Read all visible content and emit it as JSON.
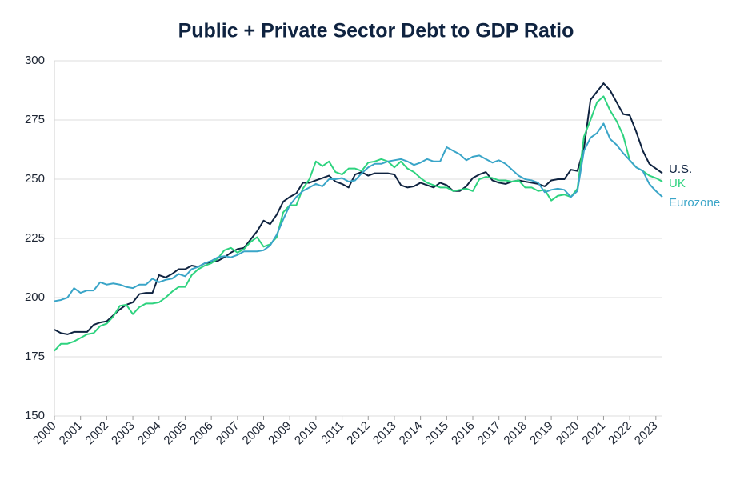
{
  "chart_data": {
    "type": "line",
    "title": "Public + Private Sector Debt to GDP Ratio",
    "x": [
      2000,
      2000.25,
      2000.5,
      2000.75,
      2001,
      2001.25,
      2001.5,
      2001.75,
      2002,
      2002.25,
      2002.5,
      2002.75,
      2003,
      2003.25,
      2003.5,
      2003.75,
      2004,
      2004.25,
      2004.5,
      2004.75,
      2005,
      2005.25,
      2005.5,
      2005.75,
      2006,
      2006.25,
      2006.5,
      2006.75,
      2007,
      2007.25,
      2007.5,
      2007.75,
      2008,
      2008.25,
      2008.5,
      2008.75,
      2009,
      2009.25,
      2009.5,
      2009.75,
      2010,
      2010.25,
      2010.5,
      2010.75,
      2011,
      2011.25,
      2011.5,
      2011.75,
      2012,
      2012.25,
      2012.5,
      2012.75,
      2013,
      2013.25,
      2013.5,
      2013.75,
      2014,
      2014.25,
      2014.5,
      2014.75,
      2015,
      2015.25,
      2015.5,
      2015.75,
      2016,
      2016.25,
      2016.5,
      2016.75,
      2017,
      2017.25,
      2017.5,
      2017.75,
      2018,
      2018.25,
      2018.5,
      2018.75,
      2019,
      2019.25,
      2019.5,
      2019.75,
      2020,
      2020.25,
      2020.5,
      2020.75,
      2021,
      2021.25,
      2021.5,
      2021.75,
      2022,
      2022.25,
      2022.5,
      2022.75,
      2023,
      2023.25
    ],
    "series": [
      {
        "name": "U.S.",
        "color": "#0f2340",
        "values": [
          186.5,
          185,
          184.5,
          185.5,
          185.5,
          185.5,
          188.5,
          189.5,
          190,
          192.5,
          195,
          197,
          198,
          201.5,
          202,
          202,
          209.5,
          208.5,
          210,
          212,
          212,
          213.5,
          213,
          214.5,
          215,
          215.5,
          217,
          219,
          220.5,
          221,
          224.5,
          228,
          232.5,
          231,
          235,
          240.5,
          242.5,
          244,
          248.5,
          248.5,
          249.5,
          250.5,
          251.5,
          249,
          248,
          246.5,
          252,
          253,
          251.5,
          252.5,
          252.5,
          252.5,
          252,
          247.5,
          246.5,
          247,
          248.5,
          247.5,
          246.5,
          248.5,
          247.5,
          245,
          245,
          247,
          250.5,
          252,
          253,
          249.5,
          248.5,
          248,
          249,
          249.5,
          249,
          248.5,
          248,
          247,
          249.5,
          250,
          250,
          254,
          253.5,
          263,
          283.5,
          287,
          290.5,
          287.5,
          282.5,
          277.5,
          277,
          270,
          262,
          256.5,
          254.5,
          252.5
        ]
      },
      {
        "name": "UK",
        "color": "#2ed37f",
        "values": [
          177.5,
          180.5,
          180.5,
          181.5,
          183,
          184.5,
          185,
          188,
          189,
          192,
          196.5,
          197,
          193,
          196,
          197.5,
          197.5,
          198,
          200,
          202.5,
          204.5,
          204.5,
          209.5,
          212,
          213.5,
          214.5,
          216.5,
          220,
          221,
          219,
          220.5,
          223.5,
          225.5,
          221.5,
          222.5,
          225.5,
          236,
          239,
          239,
          246,
          250,
          257.5,
          255.5,
          257.5,
          253,
          252,
          254.5,
          254.5,
          253.5,
          257,
          257.5,
          258.5,
          257.5,
          255,
          257.5,
          254.5,
          253,
          250.5,
          248.5,
          247.5,
          246.5,
          246.5,
          245,
          245.5,
          246,
          245,
          250,
          251,
          250.5,
          249.5,
          249.5,
          249,
          249.5,
          246.5,
          246.5,
          245,
          245.5,
          241,
          243,
          243.5,
          242.5,
          246,
          268,
          275,
          282.5,
          285,
          279,
          274.5,
          268.5,
          258,
          255,
          253.5,
          251.5,
          250.5,
          249
        ]
      },
      {
        "name": "Eurozone",
        "color": "#3aa5c8",
        "values": [
          198.5,
          199,
          200,
          204,
          202,
          203,
          203,
          206.5,
          205.5,
          206,
          205.5,
          204.5,
          204,
          205.5,
          205.5,
          208,
          206.5,
          207.5,
          208,
          210,
          209,
          212,
          213,
          214.5,
          215.5,
          217,
          217.5,
          217,
          218,
          219.5,
          219.5,
          219.5,
          220,
          222,
          226.5,
          233,
          239,
          242.5,
          245,
          246.5,
          248,
          247,
          250,
          250,
          250.5,
          249,
          249.5,
          252.5,
          255,
          256.5,
          256.5,
          257.5,
          258,
          258.5,
          257.5,
          256,
          257,
          258.5,
          257.5,
          257.5,
          263.5,
          262,
          260.5,
          258,
          259.5,
          260,
          258.5,
          257,
          258,
          256.5,
          254,
          251.5,
          250,
          249.5,
          248.5,
          244.5,
          245.5,
          246,
          245.5,
          242.5,
          245,
          262,
          267.5,
          269.5,
          273.5,
          267,
          264.5,
          261,
          258,
          255,
          253.5,
          248,
          245,
          242.5
        ]
      }
    ],
    "xlim": [
      2000,
      2023.25
    ],
    "xticks": [
      2000,
      2001,
      2002,
      2003,
      2004,
      2005,
      2006,
      2007,
      2008,
      2009,
      2010,
      2011,
      2012,
      2013,
      2014,
      2015,
      2016,
      2017,
      2018,
      2019,
      2020,
      2021,
      2022,
      2023
    ],
    "ylim": [
      150,
      300
    ],
    "yticks": [
      150,
      175,
      200,
      225,
      250,
      275,
      300
    ],
    "grid": true
  }
}
